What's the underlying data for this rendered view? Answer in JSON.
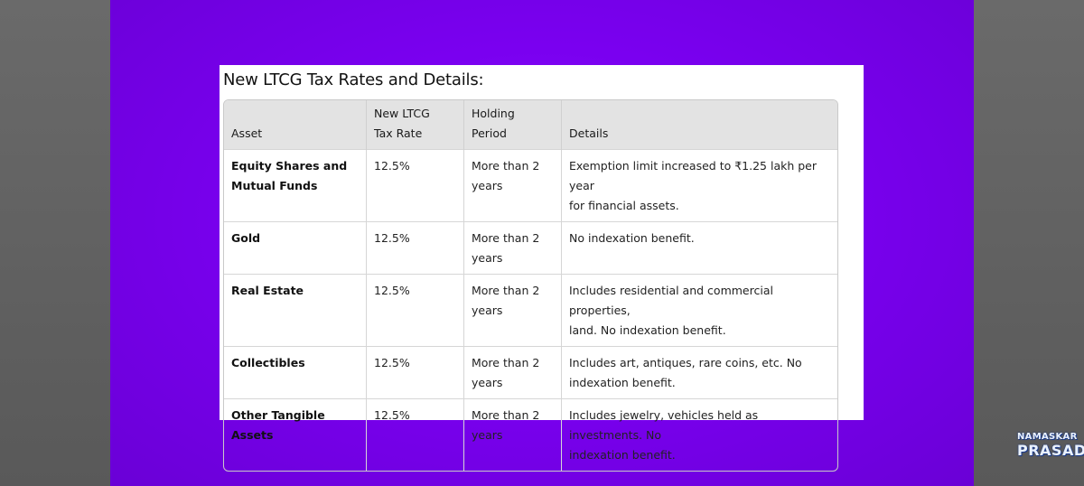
{
  "card": {
    "title": "New LTCG Tax Rates and Details:"
  },
  "table": {
    "headers": {
      "asset": "Asset",
      "rate_l1": "New LTCG",
      "rate_l2": "Tax Rate",
      "period_l1": "Holding",
      "period_l2": "Period",
      "details": "Details"
    },
    "rows": [
      {
        "asset_l1": "Equity Shares and",
        "asset_l2": "Mutual Funds",
        "rate": "12.5%",
        "period_l1": "More than 2",
        "period_l2": "years",
        "details_l1": "Exemption limit increased to ₹1.25 lakh per year",
        "details_l2": "for financial assets."
      },
      {
        "asset_l1": "Gold",
        "asset_l2": "",
        "rate": "12.5%",
        "period_l1": "More than 2",
        "period_l2": "years",
        "details_l1": "No indexation benefit.",
        "details_l2": ""
      },
      {
        "asset_l1": "Real Estate",
        "asset_l2": "",
        "rate": "12.5%",
        "period_l1": "More than 2",
        "period_l2": "years",
        "details_l1": "Includes residential and commercial properties,",
        "details_l2": "land. No indexation benefit."
      },
      {
        "asset_l1": "Collectibles",
        "asset_l2": "",
        "rate": "12.5%",
        "period_l1": "More than 2",
        "period_l2": "years",
        "details_l1": "Includes art, antiques, rare coins, etc. No",
        "details_l2": "indexation benefit."
      },
      {
        "asset_l1": "Other Tangible Assets",
        "asset_l2": "",
        "rate": "12.5%",
        "period_l1": "More than 2",
        "period_l2": "years",
        "details_l1": "Includes jewelry, vehicles held as investments. No",
        "details_l2": "indexation benefit."
      }
    ]
  },
  "watermark": {
    "line1": "NAMASKAR",
    "line2": "PRASAD"
  },
  "colors": {
    "background_purple": "#7a00f0",
    "side_gray": "#616161",
    "header_row": "#e3e3e3"
  }
}
